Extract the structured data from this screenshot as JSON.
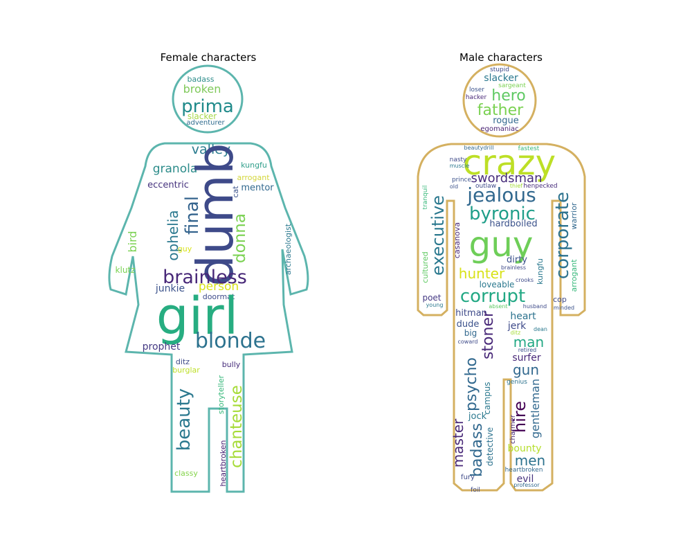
{
  "panels": [
    {
      "title": "Female characters",
      "outline_color": "#5cb5ad",
      "words": [
        {
          "text": "badass",
          "color": "#2c8c8a"
        },
        {
          "text": "broken",
          "color": "#7fc95a"
        },
        {
          "text": "prima",
          "color": "#1f8a8a"
        },
        {
          "text": "slacker",
          "color": "#a8d94a"
        },
        {
          "text": "adventurer",
          "color": "#2f6b8e"
        },
        {
          "text": "valley",
          "color": "#297b8e"
        },
        {
          "text": "granola",
          "color": "#2c8c8a"
        },
        {
          "text": "kungfu",
          "color": "#2f9e8a"
        },
        {
          "text": "arrogant",
          "color": "#d3d63a"
        },
        {
          "text": "eccentric",
          "color": "#46337e"
        },
        {
          "text": "cat",
          "color": "#3b528b"
        },
        {
          "text": "mentor",
          "color": "#31688e"
        },
        {
          "text": "dumb",
          "color": "#3e4a89"
        },
        {
          "text": "final",
          "color": "#33638d"
        },
        {
          "text": "ophelia",
          "color": "#2a788e"
        },
        {
          "text": "donna",
          "color": "#7ad151"
        },
        {
          "text": "bird",
          "color": "#7ad151"
        },
        {
          "text": "guy",
          "color": "#d8e219"
        },
        {
          "text": "archaeologist",
          "color": "#2a788e"
        },
        {
          "text": "klutz",
          "color": "#7ad151"
        },
        {
          "text": "brainless",
          "color": "#482878"
        },
        {
          "text": "junkie",
          "color": "#3b528b"
        },
        {
          "text": "person",
          "color": "#d8e219"
        },
        {
          "text": "doormat",
          "color": "#3e4a89"
        },
        {
          "text": "girl",
          "color": "#27ad81"
        },
        {
          "text": "blonde",
          "color": "#2c728e"
        },
        {
          "text": "prophet",
          "color": "#443983"
        },
        {
          "text": "ditz",
          "color": "#3e4a89"
        },
        {
          "text": "burglar",
          "color": "#bddf26"
        },
        {
          "text": "bully",
          "color": "#472d7b"
        },
        {
          "text": "beauty",
          "color": "#2a788e"
        },
        {
          "text": "storyteller",
          "color": "#35b779"
        },
        {
          "text": "chanteuse",
          "color": "#a5db36"
        },
        {
          "text": "heartbroken",
          "color": "#482173"
        },
        {
          "text": "classy",
          "color": "#84d44b"
        }
      ]
    },
    {
      "title": "Male characters",
      "outline_color": "#d4b060",
      "words": [
        {
          "text": "stupid",
          "color": "#3e4a89"
        },
        {
          "text": "slacker",
          "color": "#2a788e"
        },
        {
          "text": "sargeant",
          "color": "#7ad151"
        },
        {
          "text": "loser",
          "color": "#3b528b"
        },
        {
          "text": "hero",
          "color": "#5ec962"
        },
        {
          "text": "hacker",
          "color": "#482878"
        },
        {
          "text": "father",
          "color": "#7ad151"
        },
        {
          "text": "rogue",
          "color": "#31688e"
        },
        {
          "text": "egomaniac",
          "color": "#482173"
        },
        {
          "text": "beautydrill",
          "color": "#31688e"
        },
        {
          "text": "fastest",
          "color": "#35b779"
        },
        {
          "text": "crazy",
          "color": "#bddf26"
        },
        {
          "text": "nasty",
          "color": "#3e4a89"
        },
        {
          "text": "muscle",
          "color": "#2a788e"
        },
        {
          "text": "jealous",
          "color": "#31688e"
        },
        {
          "text": "swordsman",
          "color": "#472d7b"
        },
        {
          "text": "prince",
          "color": "#3b528b"
        },
        {
          "text": "outlaw",
          "color": "#3e4a89"
        },
        {
          "text": "thief",
          "color": "#a5db36"
        },
        {
          "text": "henpecked",
          "color": "#472d7b"
        },
        {
          "text": "old",
          "color": "#3b528b"
        },
        {
          "text": "corporate",
          "color": "#2c728e"
        },
        {
          "text": "warrior",
          "color": "#31688e"
        },
        {
          "text": "byronic",
          "color": "#1f9e89"
        },
        {
          "text": "tranquil",
          "color": "#35b779"
        },
        {
          "text": "executive",
          "color": "#2a788e"
        },
        {
          "text": "cultured",
          "color": "#5ec962"
        },
        {
          "text": "hardboiled",
          "color": "#3b528b"
        },
        {
          "text": "casanova",
          "color": "#482878"
        },
        {
          "text": "guy",
          "color": "#6ece58"
        },
        {
          "text": "arrogant",
          "color": "#35b779"
        },
        {
          "text": "dirty",
          "color": "#3b528b"
        },
        {
          "text": "cop",
          "color": "#3e4a89"
        },
        {
          "text": "hunter",
          "color": "#d8e219"
        },
        {
          "text": "kungfu",
          "color": "#2a788e"
        },
        {
          "text": "brainless",
          "color": "#3e4a89"
        },
        {
          "text": "poet",
          "color": "#443983"
        },
        {
          "text": "corrupt",
          "color": "#22a884"
        },
        {
          "text": "loveable",
          "color": "#2a788e"
        },
        {
          "text": "crooks",
          "color": "#3e4a89"
        },
        {
          "text": "young",
          "color": "#2a788e"
        },
        {
          "text": "absent",
          "color": "#5ec962"
        },
        {
          "text": "husband",
          "color": "#3e4a89"
        },
        {
          "text": "minded",
          "color": "#3b528b"
        },
        {
          "text": "hitman",
          "color": "#3e4a89"
        },
        {
          "text": "heart",
          "color": "#2c728e"
        },
        {
          "text": "dude",
          "color": "#3b528b"
        },
        {
          "text": "jerk",
          "color": "#3e4a89"
        },
        {
          "text": "big",
          "color": "#31688e"
        },
        {
          "text": "dean",
          "color": "#2a788e"
        },
        {
          "text": "ditz",
          "color": "#a5db36"
        },
        {
          "text": "stoner",
          "color": "#482878"
        },
        {
          "text": "man",
          "color": "#22a884"
        },
        {
          "text": "coward",
          "color": "#3e4a89"
        },
        {
          "text": "retired",
          "color": "#3b528b"
        },
        {
          "text": "psycho",
          "color": "#31688e"
        },
        {
          "text": "surfer",
          "color": "#482878"
        },
        {
          "text": "gun",
          "color": "#31688e"
        },
        {
          "text": "genius",
          "color": "#2c728e"
        },
        {
          "text": "campus",
          "color": "#2a788e"
        },
        {
          "text": "hire",
          "color": "#440154"
        },
        {
          "text": "gentleman",
          "color": "#31688e"
        },
        {
          "text": "master",
          "color": "#482878"
        },
        {
          "text": "jock",
          "color": "#2a788e"
        },
        {
          "text": "badass",
          "color": "#31688e"
        },
        {
          "text": "detective",
          "color": "#2c728e"
        },
        {
          "text": "charmer",
          "color": "#482878"
        },
        {
          "text": "bounty",
          "color": "#b5de2b"
        },
        {
          "text": "men",
          "color": "#2c728e"
        },
        {
          "text": "fury",
          "color": "#3e4a89"
        },
        {
          "text": "heartbroken",
          "color": "#31688e"
        },
        {
          "text": "evil",
          "color": "#46337e"
        },
        {
          "text": "foil",
          "color": "#3e4a89"
        },
        {
          "text": "professor",
          "color": "#31688e"
        }
      ]
    }
  ]
}
